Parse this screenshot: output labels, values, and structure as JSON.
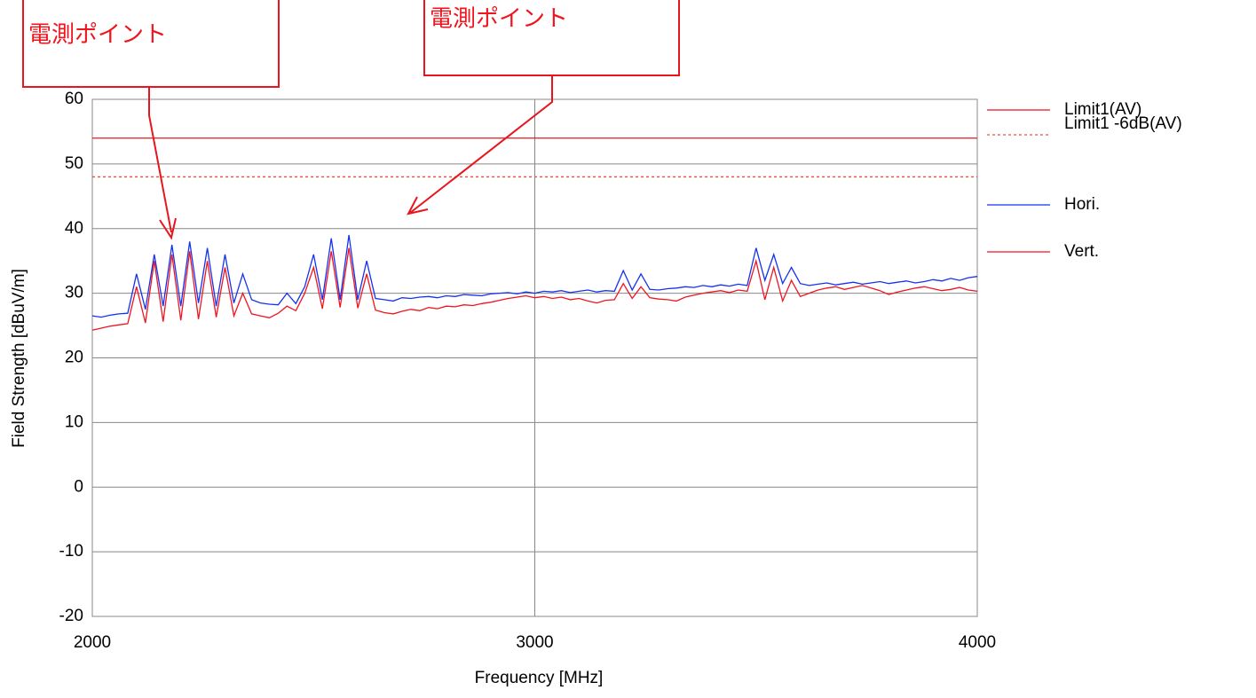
{
  "chart_data": {
    "type": "line",
    "ylabel": "Field Strength [dBuV/m]",
    "xlabel": "Frequency [MHz]",
    "annotations": [
      {
        "text": "電測ポイント"
      },
      {
        "text": "電測ポイント"
      }
    ],
    "xlim": [
      2000,
      4000
    ],
    "xticks": [
      2000,
      3000,
      4000
    ],
    "ylim": [
      -20,
      60
    ],
    "yticks": [
      -20,
      -10,
      0,
      10,
      20,
      30,
      40,
      50,
      60
    ],
    "grid": true,
    "limits": [
      {
        "name": "Limit1(AV)",
        "value": 54,
        "color": "#e8141e",
        "dashed": false
      },
      {
        "name": "Limit1 -6dB(AV)",
        "value": 48,
        "color": "#e8503c",
        "dashed": true
      }
    ],
    "x": [
      2000,
      2020,
      2040,
      2060,
      2080,
      2100,
      2120,
      2140,
      2160,
      2180,
      2200,
      2220,
      2240,
      2260,
      2280,
      2300,
      2320,
      2340,
      2360,
      2380,
      2400,
      2420,
      2440,
      2460,
      2480,
      2500,
      2520,
      2540,
      2560,
      2580,
      2600,
      2620,
      2640,
      2660,
      2680,
      2700,
      2720,
      2740,
      2760,
      2780,
      2800,
      2820,
      2840,
      2860,
      2880,
      2900,
      2920,
      2940,
      2960,
      2980,
      3000,
      3020,
      3040,
      3060,
      3080,
      3100,
      3120,
      3140,
      3160,
      3180,
      3200,
      3220,
      3240,
      3260,
      3280,
      3300,
      3320,
      3340,
      3360,
      3380,
      3400,
      3420,
      3440,
      3460,
      3480,
      3500,
      3520,
      3540,
      3560,
      3580,
      3600,
      3620,
      3640,
      3660,
      3680,
      3700,
      3720,
      3740,
      3760,
      3780,
      3800,
      3820,
      3840,
      3860,
      3880,
      3900,
      3920,
      3940,
      3960,
      3980,
      4000
    ],
    "series": [
      {
        "name": "Hori.",
        "color": "#1432f0",
        "values": [
          26.5,
          26.3,
          26.6,
          26.8,
          26.9,
          33,
          27.5,
          36,
          28,
          37.5,
          28,
          38,
          28.5,
          37,
          28,
          36,
          28.5,
          33,
          29,
          28.5,
          28.3,
          28.2,
          30,
          28.4,
          31,
          36,
          29,
          38.5,
          29,
          39,
          29,
          35,
          29.2,
          29,
          28.8,
          29.3,
          29.2,
          29.4,
          29.5,
          29.3,
          29.6,
          29.5,
          29.8,
          29.7,
          29.6,
          29.9,
          30,
          30.1,
          29.9,
          30.2,
          30,
          30.3,
          30.2,
          30.4,
          30.1,
          30.3,
          30.5,
          30.2,
          30.4,
          30.3,
          33.5,
          30.5,
          33,
          30.6,
          30.5,
          30.7,
          30.8,
          31,
          30.9,
          31.2,
          31,
          31.3,
          31.1,
          31.4,
          31.2,
          37,
          32,
          36,
          31.5,
          34,
          31.5,
          31.2,
          31.4,
          31.6,
          31.3,
          31.5,
          31.7,
          31.4,
          31.6,
          31.8,
          31.5,
          31.7,
          31.9,
          31.6,
          31.8,
          32.1,
          31.9,
          32.3,
          32,
          32.4,
          32.6
        ]
      },
      {
        "name": "Vert.",
        "color": "#f0141e",
        "values": [
          24.3,
          24.6,
          24.9,
          25.1,
          25.3,
          31,
          25.4,
          35,
          25.6,
          36,
          25.8,
          36.5,
          26,
          35,
          26.3,
          34,
          26.5,
          30,
          26.8,
          26.5,
          26.2,
          26.9,
          28,
          27.3,
          30,
          34,
          27.6,
          36.5,
          27.8,
          37,
          27.7,
          33,
          27.4,
          27,
          26.8,
          27.2,
          27.5,
          27.3,
          27.8,
          27.6,
          28,
          27.9,
          28.2,
          28.1,
          28.4,
          28.6,
          28.9,
          29.2,
          29.4,
          29.6,
          29.3,
          29.5,
          29.2,
          29.4,
          29,
          29.2,
          28.8,
          28.5,
          28.9,
          29,
          31.5,
          29.2,
          31,
          29.3,
          29.1,
          29,
          28.8,
          29.4,
          29.7,
          30,
          30.2,
          30.4,
          30.1,
          30.5,
          30.3,
          35,
          29,
          34,
          28.8,
          32,
          29.5,
          30,
          30.5,
          30.8,
          31,
          30.6,
          30.9,
          31.2,
          30.8,
          30.4,
          29.8,
          30.2,
          30.5,
          30.8,
          31,
          30.7,
          30.4,
          30.6,
          30.9,
          30.5,
          30.3
        ]
      }
    ]
  }
}
